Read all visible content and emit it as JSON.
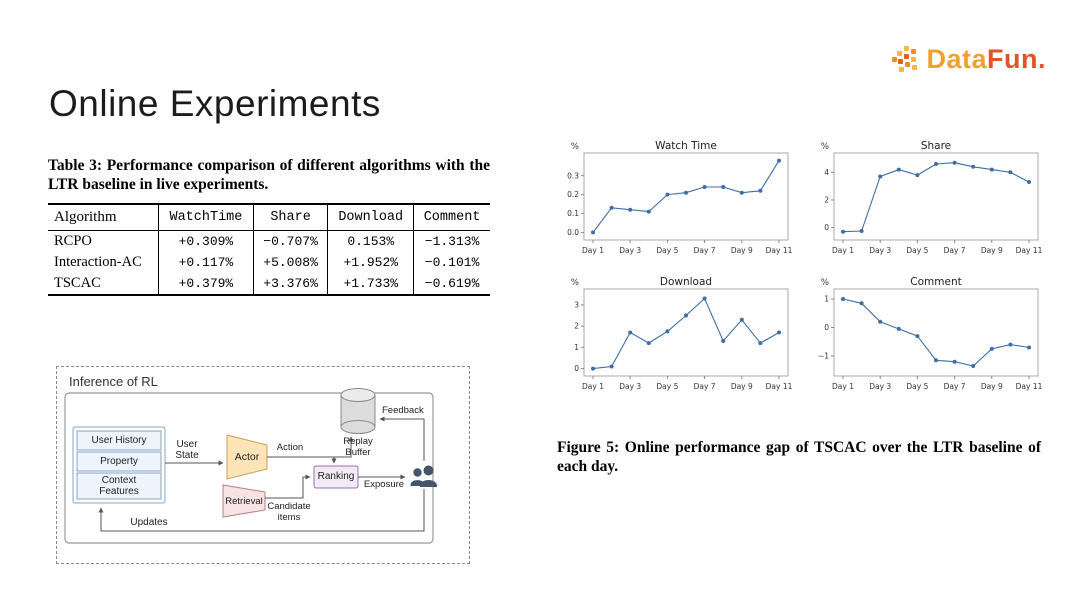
{
  "slide": {
    "title": "Online Experiments",
    "logo": {
      "part1": "Data",
      "part2": "Fun.",
      "color_primary": "#EFA02F",
      "color_accent": "#E05427"
    }
  },
  "table": {
    "caption": "Table 3: Performance comparison of different algorithms with the LTR baseline in live experiments.",
    "columns": [
      "Algorithm",
      "WatchTime",
      "Share",
      "Download",
      "Comment"
    ],
    "rows": [
      {
        "algorithm": "RCPO",
        "values": [
          "+0.309%",
          "−0.707%",
          "0.153%",
          "−1.313%"
        ]
      },
      {
        "algorithm": "Interaction-AC",
        "values": [
          "+0.117%",
          "+5.008%",
          "+1.952%",
          "−0.101%"
        ]
      },
      {
        "algorithm": "TSCAC",
        "values": [
          "+0.379%",
          "+3.376%",
          "+1.733%",
          "−0.619%"
        ]
      }
    ]
  },
  "diagram": {
    "title": "Inference of RL",
    "nodes": {
      "user_history": "User History",
      "property": "Property",
      "context_features": "Context\nFeatures",
      "user_state": "User\nState",
      "actor": "Actor",
      "action": "Action",
      "replay_buffer": "Replay\nBuffer",
      "feedback": "Feedback",
      "retrieval": "Retrieval",
      "candidate_items": "Candidate\nitems",
      "ranking": "Ranking",
      "exposure": "Exposure",
      "updates": "Updates"
    }
  },
  "figure": {
    "caption": "Figure 5: Online performance gap of TSCAC over the LTR baseline of each day."
  },
  "chart_data": [
    {
      "type": "line",
      "title": "Watch Time",
      "ylabel": "%",
      "grid": false,
      "legend": "none",
      "x": [
        "Day 1",
        "Day 2",
        "Day 3",
        "Day 4",
        "Day 5",
        "Day 6",
        "Day 7",
        "Day 8",
        "Day 9",
        "Day 10",
        "Day 11"
      ],
      "values": [
        0.0,
        0.13,
        0.12,
        0.11,
        0.2,
        0.21,
        0.24,
        0.24,
        0.21,
        0.22,
        0.38
      ],
      "yticks": [
        0.0,
        0.1,
        0.2,
        0.3
      ],
      "ytick_labels": [
        "0.0",
        "0.1",
        "0.2",
        "0.3"
      ],
      "ylim": [
        -0.04,
        0.42
      ],
      "line_color": "#3d6ea5"
    },
    {
      "type": "line",
      "title": "Share",
      "ylabel": "%",
      "grid": false,
      "legend": "none",
      "x": [
        "Day 1",
        "Day 2",
        "Day 3",
        "Day 4",
        "Day 5",
        "Day 6",
        "Day 7",
        "Day 8",
        "Day 9",
        "Day 10",
        "Day 11"
      ],
      "values": [
        -0.3,
        -0.25,
        3.7,
        4.2,
        3.8,
        4.6,
        4.7,
        4.4,
        4.2,
        4.0,
        3.3
      ],
      "yticks": [
        0,
        2,
        4
      ],
      "ytick_labels": [
        "0",
        "2",
        "4"
      ],
      "ylim": [
        -0.9,
        5.4
      ],
      "line_color": "#3d6ea5"
    },
    {
      "type": "line",
      "title": "Download",
      "ylabel": "%",
      "grid": false,
      "legend": "none",
      "x": [
        "Day 1",
        "Day 2",
        "Day 3",
        "Day 4",
        "Day 5",
        "Day 6",
        "Day 7",
        "Day 8",
        "Day 9",
        "Day 10",
        "Day 11"
      ],
      "values": [
        0.0,
        0.1,
        1.7,
        1.2,
        1.75,
        2.5,
        3.3,
        1.3,
        2.3,
        1.2,
        1.7
      ],
      "yticks": [
        0,
        1,
        2,
        3
      ],
      "ytick_labels": [
        "0",
        "1",
        "2",
        "3"
      ],
      "ylim": [
        -0.35,
        3.75
      ],
      "line_color": "#3d6ea5"
    },
    {
      "type": "line",
      "title": "Comment",
      "ylabel": "%",
      "grid": false,
      "legend": "none",
      "x": [
        "Day 1",
        "Day 2",
        "Day 3",
        "Day 4",
        "Day 5",
        "Day 6",
        "Day 7",
        "Day 8",
        "Day 9",
        "Day 10",
        "Day 11"
      ],
      "values": [
        1.0,
        0.85,
        0.2,
        -0.05,
        -0.3,
        -1.15,
        -1.2,
        -1.35,
        -0.75,
        -0.6,
        -0.7
      ],
      "yticks": [
        -1,
        0,
        1
      ],
      "ytick_labels": [
        "−1",
        "0",
        "1"
      ],
      "ylim": [
        -1.7,
        1.35
      ],
      "line_color": "#3d6ea5"
    }
  ]
}
